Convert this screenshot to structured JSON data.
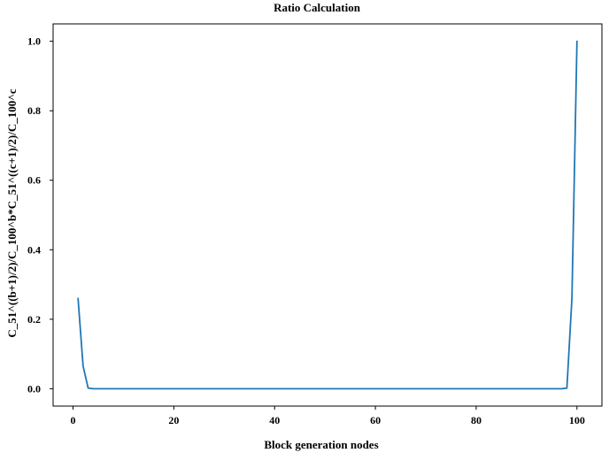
{
  "chart_data": {
    "type": "line",
    "title": "Ratio Calculation",
    "xlabel": "Block generation nodes",
    "ylabel": "C_51^((b+1)/2)/C_100^b*C_51^((c+1)/2)/C_100^c",
    "xlim": [
      -3.95,
      104.95
    ],
    "ylim": [
      -0.05,
      1.05
    ],
    "xticks": [
      0,
      20,
      40,
      60,
      80,
      100
    ],
    "yticks": [
      0.0,
      0.2,
      0.4,
      0.6,
      0.8,
      1.0
    ],
    "xtick_labels": [
      "0",
      "20",
      "40",
      "60",
      "80",
      "100"
    ],
    "ytick_labels": [
      "0.0",
      "0.2",
      "0.4",
      "0.6",
      "0.8",
      "1.0"
    ],
    "series": [
      {
        "name": "ratio",
        "color": "#1f77b4",
        "x": [
          1,
          2,
          3,
          4,
          96,
          97,
          98,
          99,
          100
        ],
        "y": [
          0.26,
          0.065,
          0.002,
          0.0,
          0.0,
          0.0,
          0.002,
          0.26,
          1.0
        ]
      }
    ]
  }
}
